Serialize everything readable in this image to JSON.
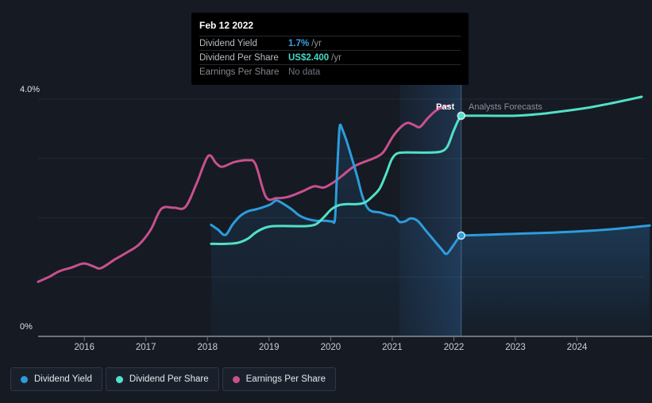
{
  "colors": {
    "background": "#151A23",
    "dividend_yield": "#2D9CDB",
    "dividend_per_share": "#52E0C8",
    "earnings_per_share": "#C9508E",
    "grid": "#232A37",
    "axis": "#C8CCD2",
    "tick": "#6A7280",
    "x_label": "#CBCFD6",
    "today_line": "rgba(125,165,210,0.45)"
  },
  "tooltip": {
    "date": "Feb 12 2022",
    "rows": [
      {
        "label": "Dividend Yield",
        "value": "1.7%",
        "unit": "/yr"
      },
      {
        "label": "Dividend Per Share",
        "value": "US$2.400",
        "unit": "/yr"
      },
      {
        "label": "Earnings Per Share",
        "value": "No data",
        "unit": ""
      }
    ]
  },
  "zones": {
    "past": "Past",
    "forecast": "Analysts Forecasts"
  },
  "legend": {
    "items": [
      {
        "label": "Dividend Yield",
        "color": "#2D9CDB"
      },
      {
        "label": "Dividend Per Share",
        "color": "#52E0C8"
      },
      {
        "label": "Earnings Per Share",
        "color": "#C9508E"
      }
    ]
  },
  "chart_data": {
    "type": "line",
    "x_unit": "year",
    "y_unit": "percent",
    "xlim": [
      2015.25,
      2025.05
    ],
    "ylim": [
      0,
      4
    ],
    "x_ticks": [
      2016,
      2017,
      2018,
      2019,
      2020,
      2021,
      2022,
      2023,
      2024
    ],
    "y_gridlines_pct": [
      1,
      2,
      3,
      4
    ],
    "ylabels": {
      "top": "4.0%",
      "bottom": "0%"
    },
    "today": 2022.12,
    "highlight_band": [
      2021.12,
      2022.12
    ],
    "legend_position": "bottom",
    "series": [
      {
        "name": "Earnings Per Share",
        "color": "#C9508E",
        "zone": "past",
        "area": false,
        "points": [
          [
            2015.25,
            0.92
          ],
          [
            2015.42,
            1.0
          ],
          [
            2015.6,
            1.1
          ],
          [
            2015.79,
            1.16
          ],
          [
            2015.99,
            1.23
          ],
          [
            2016.15,
            1.18
          ],
          [
            2016.27,
            1.15
          ],
          [
            2016.5,
            1.3
          ],
          [
            2016.7,
            1.42
          ],
          [
            2016.89,
            1.55
          ],
          [
            2017.08,
            1.8
          ],
          [
            2017.25,
            2.15
          ],
          [
            2017.45,
            2.17
          ],
          [
            2017.64,
            2.18
          ],
          [
            2017.82,
            2.57
          ],
          [
            2018.01,
            3.04
          ],
          [
            2018.14,
            2.92
          ],
          [
            2018.24,
            2.86
          ],
          [
            2018.44,
            2.94
          ],
          [
            2018.66,
            2.97
          ],
          [
            2018.78,
            2.9
          ],
          [
            2018.95,
            2.35
          ],
          [
            2019.12,
            2.33
          ],
          [
            2019.3,
            2.35
          ],
          [
            2019.53,
            2.44
          ],
          [
            2019.73,
            2.53
          ],
          [
            2019.89,
            2.51
          ],
          [
            2020.05,
            2.6
          ],
          [
            2020.2,
            2.72
          ],
          [
            2020.37,
            2.86
          ],
          [
            2020.54,
            2.94
          ],
          [
            2020.69,
            3.0
          ],
          [
            2020.85,
            3.1
          ],
          [
            2021.01,
            3.37
          ],
          [
            2021.14,
            3.53
          ],
          [
            2021.25,
            3.6
          ],
          [
            2021.36,
            3.56
          ],
          [
            2021.45,
            3.53
          ],
          [
            2021.57,
            3.67
          ],
          [
            2021.7,
            3.8
          ],
          [
            2021.83,
            3.87
          ],
          [
            2021.93,
            3.89
          ]
        ]
      },
      {
        "name": "Dividend Yield",
        "color": "#2D9CDB",
        "zone": "past",
        "area": true,
        "points": [
          [
            2018.06,
            1.88
          ],
          [
            2018.17,
            1.8
          ],
          [
            2018.29,
            1.71
          ],
          [
            2018.41,
            1.89
          ],
          [
            2018.53,
            2.03
          ],
          [
            2018.66,
            2.11
          ],
          [
            2018.78,
            2.14
          ],
          [
            2018.91,
            2.18
          ],
          [
            2019.03,
            2.23
          ],
          [
            2019.12,
            2.29
          ],
          [
            2019.24,
            2.23
          ],
          [
            2019.37,
            2.14
          ],
          [
            2019.49,
            2.04
          ],
          [
            2019.62,
            1.98
          ],
          [
            2019.76,
            1.95
          ],
          [
            2019.92,
            1.95
          ],
          [
            2020.02,
            1.94
          ],
          [
            2020.07,
            1.98
          ],
          [
            2020.1,
            2.66
          ],
          [
            2020.13,
            3.29
          ],
          [
            2020.15,
            3.56
          ],
          [
            2020.19,
            3.49
          ],
          [
            2020.25,
            3.32
          ],
          [
            2020.34,
            3.02
          ],
          [
            2020.43,
            2.7
          ],
          [
            2020.51,
            2.38
          ],
          [
            2020.59,
            2.18
          ],
          [
            2020.67,
            2.11
          ],
          [
            2020.8,
            2.09
          ],
          [
            2020.92,
            2.05
          ],
          [
            2021.04,
            2.02
          ],
          [
            2021.12,
            1.93
          ],
          [
            2021.21,
            1.94
          ],
          [
            2021.3,
            1.99
          ],
          [
            2021.41,
            1.95
          ],
          [
            2021.54,
            1.79
          ],
          [
            2021.67,
            1.63
          ],
          [
            2021.8,
            1.47
          ],
          [
            2021.88,
            1.39
          ],
          [
            2021.97,
            1.5
          ],
          [
            2022.05,
            1.62
          ],
          [
            2022.12,
            1.7
          ]
        ]
      },
      {
        "name": "Dividend Yield (forecast)",
        "color": "#2D9CDB",
        "zone": "forecast",
        "area": true,
        "points": [
          [
            2022.12,
            1.7
          ],
          [
            2022.4,
            1.71
          ],
          [
            2023.0,
            1.73
          ],
          [
            2023.6,
            1.75
          ],
          [
            2024.2,
            1.78
          ],
          [
            2024.7,
            1.82
          ],
          [
            2025.18,
            1.87
          ]
        ]
      },
      {
        "name": "Dividend Per Share",
        "color": "#52E0C8",
        "zone": "past",
        "area": false,
        "points": [
          [
            2018.06,
            1.56
          ],
          [
            2018.3,
            1.56
          ],
          [
            2018.5,
            1.58
          ],
          [
            2018.66,
            1.65
          ],
          [
            2018.78,
            1.75
          ],
          [
            2018.93,
            1.83
          ],
          [
            2019.08,
            1.86
          ],
          [
            2019.35,
            1.86
          ],
          [
            2019.6,
            1.86
          ],
          [
            2019.76,
            1.89
          ],
          [
            2019.89,
            2.01
          ],
          [
            2020.01,
            2.14
          ],
          [
            2020.13,
            2.21
          ],
          [
            2020.27,
            2.23
          ],
          [
            2020.43,
            2.23
          ],
          [
            2020.56,
            2.26
          ],
          [
            2020.69,
            2.37
          ],
          [
            2020.8,
            2.5
          ],
          [
            2020.9,
            2.74
          ],
          [
            2020.99,
            2.98
          ],
          [
            2021.07,
            3.08
          ],
          [
            2021.18,
            3.1
          ],
          [
            2021.4,
            3.1
          ],
          [
            2021.62,
            3.1
          ],
          [
            2021.8,
            3.12
          ],
          [
            2021.9,
            3.21
          ],
          [
            2021.99,
            3.45
          ],
          [
            2022.07,
            3.64
          ],
          [
            2022.12,
            3.72
          ]
        ]
      },
      {
        "name": "Dividend Per Share (forecast)",
        "color": "#52E0C8",
        "zone": "forecast",
        "area": false,
        "points": [
          [
            2022.12,
            3.72
          ],
          [
            2022.5,
            3.72
          ],
          [
            2023.0,
            3.72
          ],
          [
            2023.4,
            3.75
          ],
          [
            2023.8,
            3.8
          ],
          [
            2024.2,
            3.86
          ],
          [
            2024.6,
            3.94
          ],
          [
            2025.05,
            4.04
          ]
        ]
      }
    ],
    "markers": [
      {
        "series": "Dividend Yield",
        "x": 2022.12,
        "y": 1.7,
        "color": "#2D9CDB"
      },
      {
        "series": "Dividend Per Share",
        "x": 2022.12,
        "y": 3.72,
        "color": "#52E0C8"
      }
    ]
  }
}
